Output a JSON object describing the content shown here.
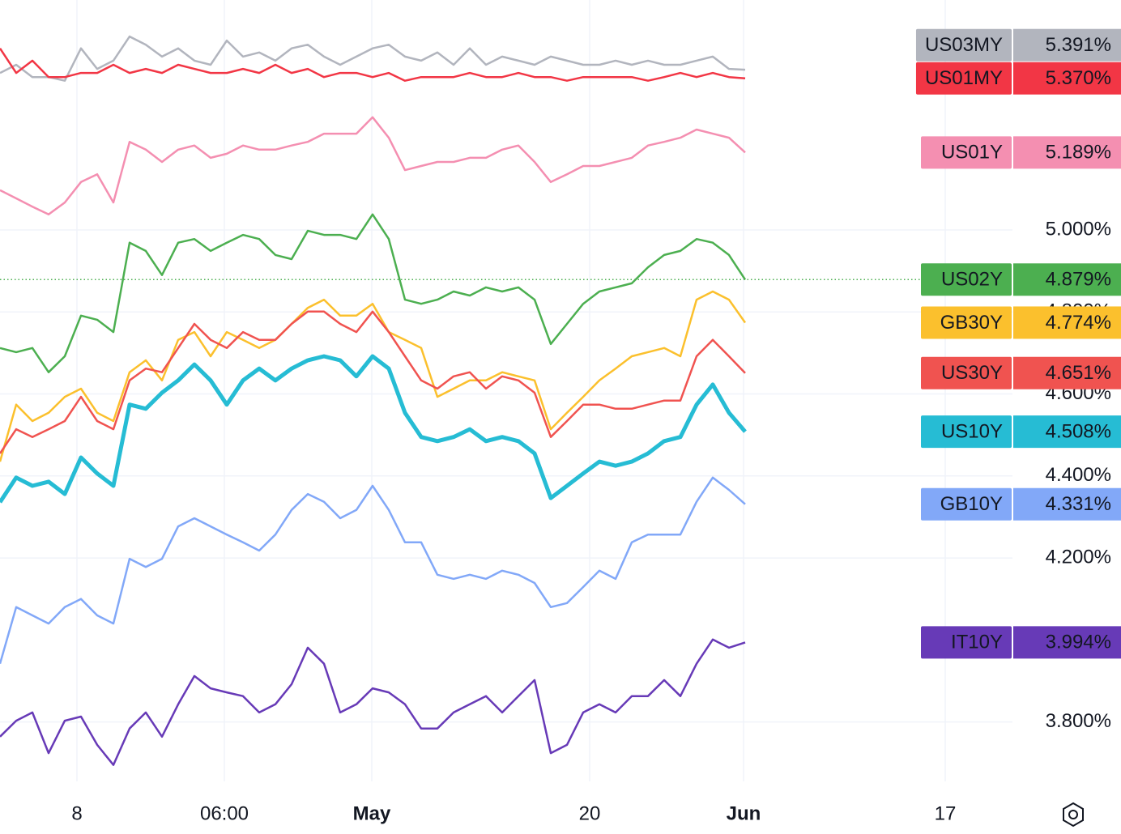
{
  "chart_data": {
    "type": "line",
    "x": [
      0,
      1,
      2,
      3,
      4,
      5,
      6,
      7,
      8,
      9,
      10,
      11,
      12,
      13,
      14,
      15,
      16,
      17,
      18,
      19,
      20,
      21,
      22,
      23,
      24,
      25,
      26,
      27,
      28,
      29,
      30,
      31,
      32,
      33,
      34,
      35,
      36,
      37,
      38,
      39,
      40,
      41,
      42,
      43,
      44,
      45,
      46
    ],
    "xlim": [
      0,
      62.5
    ],
    "xticks": [
      {
        "value": 4.75,
        "label": "8"
      },
      {
        "value": 13.85,
        "label": "06:00"
      },
      {
        "value": 22.95,
        "label": "May"
      },
      {
        "value": 36.4,
        "label": "20"
      },
      {
        "value": 45.9,
        "label": "Jun"
      },
      {
        "value": 58.35,
        "label": "17"
      }
    ],
    "ylim": [
      3.655,
      5.561
    ],
    "yticks": [
      {
        "value": 3.8,
        "label": "3.800%"
      },
      {
        "value": 4.2,
        "label": "4.200%"
      },
      {
        "value": 4.4,
        "label": "4.400%"
      },
      {
        "value": 4.6,
        "label": "4.600%"
      },
      {
        "value": 4.8,
        "label": "4.800%"
      },
      {
        "value": 5.0,
        "label": "5.000%"
      }
    ],
    "grid": true,
    "price_line_series": 3,
    "series": [
      {
        "name": "US03MY",
        "color": "#b2b5be",
        "width": 2.5,
        "last_label": "5.391%",
        "values": [
          5.383,
          5.403,
          5.373,
          5.373,
          5.364,
          5.443,
          5.393,
          5.413,
          5.472,
          5.452,
          5.423,
          5.443,
          5.413,
          5.403,
          5.462,
          5.423,
          5.433,
          5.413,
          5.443,
          5.452,
          5.423,
          5.403,
          5.423,
          5.443,
          5.452,
          5.423,
          5.413,
          5.433,
          5.403,
          5.443,
          5.403,
          5.423,
          5.413,
          5.403,
          5.423,
          5.413,
          5.403,
          5.403,
          5.413,
          5.403,
          5.413,
          5.403,
          5.403,
          5.413,
          5.423,
          5.393,
          5.391
        ]
      },
      {
        "name": "US01MY",
        "color": "#f23645",
        "width": 2.5,
        "last_label": "5.370%",
        "values": [
          5.443,
          5.383,
          5.413,
          5.373,
          5.373,
          5.383,
          5.383,
          5.403,
          5.383,
          5.393,
          5.383,
          5.403,
          5.393,
          5.383,
          5.383,
          5.393,
          5.383,
          5.403,
          5.383,
          5.393,
          5.373,
          5.383,
          5.383,
          5.373,
          5.383,
          5.364,
          5.373,
          5.373,
          5.373,
          5.383,
          5.373,
          5.373,
          5.383,
          5.373,
          5.373,
          5.364,
          5.373,
          5.373,
          5.373,
          5.373,
          5.364,
          5.373,
          5.383,
          5.373,
          5.383,
          5.373,
          5.37
        ]
      },
      {
        "name": "US01Y",
        "color": "#f48fb1",
        "width": 2.5,
        "last_label": "5.189%",
        "values": [
          5.097,
          5.077,
          5.057,
          5.038,
          5.067,
          5.117,
          5.136,
          5.067,
          5.215,
          5.196,
          5.166,
          5.196,
          5.206,
          5.176,
          5.186,
          5.206,
          5.196,
          5.196,
          5.206,
          5.215,
          5.235,
          5.235,
          5.235,
          5.275,
          5.225,
          5.146,
          5.156,
          5.166,
          5.166,
          5.176,
          5.176,
          5.196,
          5.206,
          5.166,
          5.117,
          5.136,
          5.156,
          5.156,
          5.166,
          5.176,
          5.206,
          5.215,
          5.225,
          5.245,
          5.235,
          5.225,
          5.189
        ]
      },
      {
        "name": "US02Y",
        "color": "#4caf50",
        "width": 2.5,
        "last_label": "4.879%",
        "values": [
          4.712,
          4.702,
          4.712,
          4.653,
          4.692,
          4.791,
          4.781,
          4.751,
          4.969,
          4.949,
          4.89,
          4.969,
          4.978,
          4.949,
          4.969,
          4.988,
          4.978,
          4.939,
          4.929,
          4.998,
          4.988,
          4.988,
          4.978,
          5.038,
          4.978,
          4.83,
          4.82,
          4.83,
          4.85,
          4.84,
          4.86,
          4.85,
          4.86,
          4.83,
          4.722,
          4.771,
          4.82,
          4.85,
          4.86,
          4.87,
          4.909,
          4.939,
          4.949,
          4.978,
          4.969,
          4.939,
          4.879
        ]
      },
      {
        "name": "GB30Y",
        "color": "#fbc02d",
        "width": 2.5,
        "last_label": "4.774%",
        "values": [
          4.435,
          4.574,
          4.534,
          4.554,
          4.593,
          4.613,
          4.554,
          4.534,
          4.653,
          4.682,
          4.633,
          4.732,
          4.751,
          4.692,
          4.751,
          4.732,
          4.712,
          4.732,
          4.771,
          4.81,
          4.83,
          4.791,
          4.791,
          4.82,
          4.751,
          4.732,
          4.712,
          4.593,
          4.613,
          4.633,
          4.633,
          4.653,
          4.643,
          4.633,
          4.514,
          4.554,
          4.593,
          4.633,
          4.662,
          4.692,
          4.702,
          4.712,
          4.692,
          4.83,
          4.85,
          4.83,
          4.774
        ]
      },
      {
        "name": "US30Y",
        "color": "#f05350",
        "width": 2.5,
        "last_label": "4.651%",
        "values": [
          4.455,
          4.514,
          4.495,
          4.514,
          4.534,
          4.593,
          4.534,
          4.514,
          4.633,
          4.662,
          4.653,
          4.712,
          4.771,
          4.732,
          4.712,
          4.751,
          4.732,
          4.732,
          4.771,
          4.801,
          4.801,
          4.771,
          4.751,
          4.801,
          4.751,
          4.692,
          4.633,
          4.613,
          4.643,
          4.653,
          4.613,
          4.643,
          4.633,
          4.603,
          4.495,
          4.534,
          4.574,
          4.574,
          4.564,
          4.564,
          4.574,
          4.584,
          4.584,
          4.692,
          4.732,
          4.692,
          4.651
        ]
      },
      {
        "name": "US10Y",
        "color": "#26bcd4",
        "width": 5,
        "last_label": "4.508%",
        "values": [
          4.336,
          4.396,
          4.376,
          4.386,
          4.356,
          4.445,
          4.406,
          4.376,
          4.574,
          4.564,
          4.603,
          4.633,
          4.672,
          4.633,
          4.574,
          4.633,
          4.662,
          4.633,
          4.662,
          4.682,
          4.692,
          4.682,
          4.643,
          4.692,
          4.662,
          4.554,
          4.495,
          4.485,
          4.495,
          4.514,
          4.485,
          4.495,
          4.485,
          4.455,
          4.346,
          4.376,
          4.406,
          4.435,
          4.425,
          4.435,
          4.455,
          4.485,
          4.495,
          4.574,
          4.623,
          4.554,
          4.508
        ]
      },
      {
        "name": "GB10Y",
        "color": "#82a8f8",
        "width": 2.5,
        "last_label": "4.331%",
        "values": [
          3.942,
          4.08,
          4.06,
          4.04,
          4.08,
          4.1,
          4.06,
          4.04,
          4.198,
          4.178,
          4.198,
          4.277,
          4.297,
          4.277,
          4.257,
          4.238,
          4.218,
          4.257,
          4.317,
          4.356,
          4.337,
          4.297,
          4.317,
          4.376,
          4.317,
          4.238,
          4.238,
          4.159,
          4.149,
          4.159,
          4.149,
          4.169,
          4.159,
          4.139,
          4.08,
          4.09,
          4.129,
          4.169,
          4.149,
          4.238,
          4.257,
          4.257,
          4.257,
          4.337,
          4.396,
          4.366,
          4.331
        ]
      },
      {
        "name": "IT10Y",
        "color": "#673ab7",
        "width": 2.5,
        "last_label": "3.994%",
        "values": [
          3.764,
          3.803,
          3.823,
          3.724,
          3.803,
          3.813,
          3.744,
          3.695,
          3.784,
          3.823,
          3.764,
          3.843,
          3.912,
          3.882,
          3.872,
          3.863,
          3.823,
          3.843,
          3.892,
          3.981,
          3.942,
          3.823,
          3.843,
          3.882,
          3.872,
          3.843,
          3.784,
          3.784,
          3.823,
          3.843,
          3.863,
          3.823,
          3.863,
          3.902,
          3.724,
          3.744,
          3.823,
          3.843,
          3.823,
          3.863,
          3.863,
          3.902,
          3.863,
          3.942,
          4.001,
          3.981,
          3.994
        ]
      }
    ]
  }
}
